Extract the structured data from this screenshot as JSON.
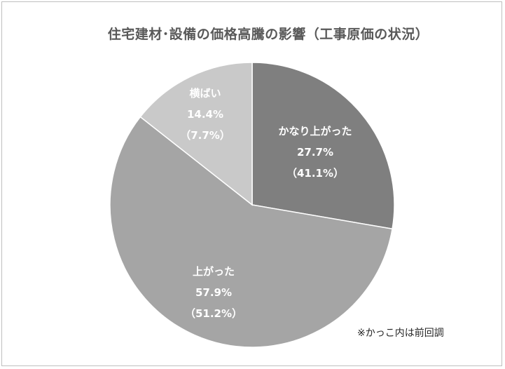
{
  "chart_data": {
    "type": "pie",
    "title": "住宅建材･設備の価格高騰の影響（工事原価の状況）",
    "note": "※かっこ内は前回調",
    "slices": [
      {
        "name": "かなり上がった",
        "value": 27.7,
        "value_label": "27.7%",
        "previous_label": "（41.1%）",
        "color": "#7f7f7f"
      },
      {
        "name": "上がった",
        "value": 57.9,
        "value_label": "57.9%",
        "previous_label": "（51.2%）",
        "color": "#a5a5a5"
      },
      {
        "name": "横ばい",
        "value": 14.4,
        "value_label": "14.4%",
        "previous_label": "（7.7%）",
        "color": "#c9c9c9"
      }
    ]
  }
}
